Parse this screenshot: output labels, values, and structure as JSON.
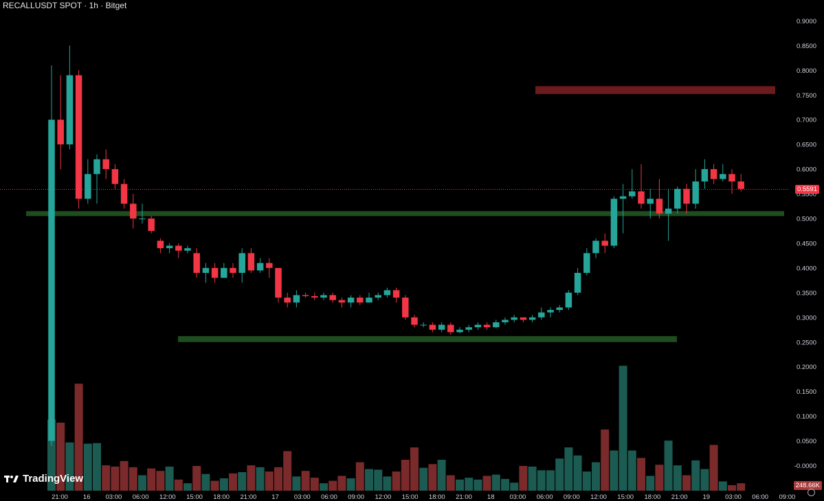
{
  "header": {
    "title": "RECALLUSDT SPOT · 1h · Bitget"
  },
  "branding": {
    "name": "TradingView"
  },
  "price_label": "0.5591",
  "volume_label": "248.66K",
  "colors": {
    "up": "#26a69a",
    "down": "#f23645",
    "zone_support": "#1f4d1f",
    "zone_resistance": "#6b1a1e",
    "current_line": "#f23645"
  },
  "chart_data": {
    "type": "candlestick",
    "title": "RECALLUSDT SPOT · 1h · Bitget",
    "y_ticks": [
      "0.9000",
      "0.8500",
      "0.8000",
      "0.7500",
      "0.7000",
      "0.6500",
      "0.6000",
      "0.5500",
      "0.5000",
      "0.4500",
      "0.4000",
      "0.3500",
      "0.3000",
      "0.2500",
      "0.2000",
      "0.1500",
      "0.1000",
      "0.0500",
      "-0.0000"
    ],
    "x_ticks": [
      "21:00",
      "16",
      "03:00",
      "06:00",
      "12:00",
      "15:00",
      "18:00",
      "21:00",
      "17",
      "03:00",
      "06:00",
      "09:00",
      "12:00",
      "15:00",
      "18:00",
      "21:00",
      "18",
      "03:00",
      "06:00",
      "09:00",
      "12:00",
      "15:00",
      "18:00",
      "21:00",
      "19",
      "03:00",
      "06:00",
      "09:00"
    ],
    "current_price": 0.5591,
    "zones": [
      {
        "type": "support",
        "from": 0.505,
        "to": 0.515
      },
      {
        "type": "support",
        "from": 0.25,
        "to": 0.262
      },
      {
        "type": "resistance",
        "from": 0.752,
        "to": 0.768
      }
    ],
    "candles": [
      [
        0.05,
        0.7,
        0.81,
        0.04
      ],
      [
        0.7,
        0.65,
        0.79,
        0.6
      ],
      [
        0.65,
        0.79,
        0.85,
        0.64
      ],
      [
        0.79,
        0.54,
        0.8,
        0.52
      ],
      [
        0.54,
        0.59,
        0.62,
        0.53
      ],
      [
        0.59,
        0.62,
        0.63,
        0.53
      ],
      [
        0.62,
        0.6,
        0.64,
        0.58
      ],
      [
        0.6,
        0.57,
        0.61,
        0.56
      ],
      [
        0.57,
        0.53,
        0.58,
        0.52
      ],
      [
        0.53,
        0.5,
        0.55,
        0.48
      ],
      [
        0.5,
        0.5,
        0.53,
        0.49
      ],
      [
        0.5,
        0.475,
        0.505,
        0.47
      ],
      [
        0.455,
        0.44,
        0.46,
        0.43
      ],
      [
        0.44,
        0.445,
        0.45,
        0.43
      ],
      [
        0.445,
        0.435,
        0.45,
        0.42
      ],
      [
        0.435,
        0.44,
        0.445,
        0.43
      ],
      [
        0.43,
        0.39,
        0.44,
        0.38
      ],
      [
        0.39,
        0.4,
        0.41,
        0.37
      ],
      [
        0.4,
        0.38,
        0.41,
        0.37
      ],
      [
        0.38,
        0.4,
        0.41,
        0.38
      ],
      [
        0.4,
        0.39,
        0.41,
        0.38
      ],
      [
        0.39,
        0.43,
        0.44,
        0.37
      ],
      [
        0.43,
        0.395,
        0.44,
        0.39
      ],
      [
        0.395,
        0.41,
        0.42,
        0.39
      ],
      [
        0.41,
        0.4,
        0.42,
        0.38
      ],
      [
        0.4,
        0.34,
        0.4,
        0.33
      ],
      [
        0.34,
        0.33,
        0.35,
        0.32
      ],
      [
        0.33,
        0.345,
        0.355,
        0.32
      ],
      [
        0.345,
        0.343,
        0.35,
        0.34
      ],
      [
        0.343,
        0.34,
        0.35,
        0.335
      ],
      [
        0.34,
        0.345,
        0.35,
        0.335
      ],
      [
        0.345,
        0.335,
        0.35,
        0.33
      ],
      [
        0.335,
        0.33,
        0.34,
        0.32
      ],
      [
        0.33,
        0.34,
        0.345,
        0.32
      ],
      [
        0.34,
        0.33,
        0.345,
        0.325
      ],
      [
        0.33,
        0.34,
        0.35,
        0.33
      ],
      [
        0.34,
        0.345,
        0.35,
        0.335
      ],
      [
        0.345,
        0.355,
        0.36,
        0.34
      ],
      [
        0.355,
        0.34,
        0.36,
        0.33
      ],
      [
        0.34,
        0.3,
        0.345,
        0.295
      ],
      [
        0.3,
        0.285,
        0.305,
        0.28
      ],
      [
        0.285,
        0.285,
        0.29,
        0.28
      ],
      [
        0.285,
        0.275,
        0.29,
        0.27
      ],
      [
        0.275,
        0.285,
        0.29,
        0.27
      ],
      [
        0.285,
        0.27,
        0.29,
        0.265
      ],
      [
        0.27,
        0.275,
        0.28,
        0.268
      ],
      [
        0.275,
        0.28,
        0.285,
        0.27
      ],
      [
        0.28,
        0.285,
        0.29,
        0.275
      ],
      [
        0.285,
        0.28,
        0.29,
        0.275
      ],
      [
        0.28,
        0.29,
        0.295,
        0.278
      ],
      [
        0.29,
        0.295,
        0.3,
        0.285
      ],
      [
        0.295,
        0.3,
        0.305,
        0.29
      ],
      [
        0.3,
        0.295,
        0.3,
        0.29
      ],
      [
        0.295,
        0.3,
        0.305,
        0.29
      ],
      [
        0.3,
        0.31,
        0.32,
        0.295
      ],
      [
        0.31,
        0.315,
        0.32,
        0.3
      ],
      [
        0.315,
        0.32,
        0.325,
        0.31
      ],
      [
        0.32,
        0.35,
        0.355,
        0.315
      ],
      [
        0.35,
        0.39,
        0.4,
        0.345
      ],
      [
        0.39,
        0.43,
        0.44,
        0.385
      ],
      [
        0.43,
        0.455,
        0.46,
        0.42
      ],
      [
        0.455,
        0.445,
        0.47,
        0.43
      ],
      [
        0.445,
        0.54,
        0.545,
        0.44
      ],
      [
        0.54,
        0.545,
        0.57,
        0.47
      ],
      [
        0.545,
        0.555,
        0.6,
        0.54
      ],
      [
        0.555,
        0.53,
        0.61,
        0.52
      ],
      [
        0.53,
        0.54,
        0.56,
        0.5
      ],
      [
        0.54,
        0.51,
        0.58,
        0.5
      ],
      [
        0.51,
        0.52,
        0.56,
        0.455
      ],
      [
        0.52,
        0.56,
        0.565,
        0.51
      ],
      [
        0.56,
        0.53,
        0.57,
        0.51
      ],
      [
        0.53,
        0.575,
        0.6,
        0.52
      ],
      [
        0.575,
        0.6,
        0.62,
        0.56
      ],
      [
        0.6,
        0.58,
        0.61,
        0.57
      ],
      [
        0.58,
        0.59,
        0.61,
        0.575
      ],
      [
        0.59,
        0.575,
        0.6,
        0.55
      ],
      [
        0.575,
        0.56,
        0.59,
        0.555
      ]
    ],
    "volumes": [
      0.115,
      0.11,
      0.078,
      0.173,
      0.076,
      0.077,
      0.041,
      0.039,
      0.048,
      0.038,
      0.025,
      0.036,
      0.032,
      0.039,
      0.018,
      0.012,
      0.04,
      0.027,
      0.016,
      0.02,
      0.028,
      0.03,
      0.041,
      0.038,
      0.031,
      0.038,
      0.064,
      0.023,
      0.032,
      0.021,
      0.012,
      0.016,
      0.024,
      0.02,
      0.046,
      0.035,
      0.034,
      0.023,
      0.031,
      0.05,
      0.07,
      0.037,
      0.043,
      0.05,
      0.025,
      0.018,
      0.021,
      0.018,
      0.024,
      0.026,
      0.019,
      0.013,
      0.04,
      0.039,
      0.033,
      0.033,
      0.052,
      0.07,
      0.057,
      0.031,
      0.046,
      0.099,
      0.065,
      0.202,
      0.065,
      0.053,
      0.024,
      0.042,
      0.081,
      0.041,
      0.025,
      0.049,
      0.035,
      0.074,
      0.015,
      0.009,
      0.012
    ]
  }
}
